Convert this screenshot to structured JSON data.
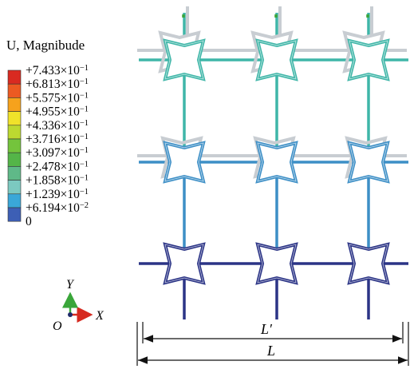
{
  "legend": {
    "title": "U, Magnibude",
    "entries": [
      {
        "label": "+7.433×10",
        "exp": "−1",
        "color": "#d92a21"
      },
      {
        "label": "+6.813×10",
        "exp": "−1",
        "color": "#ec5a22"
      },
      {
        "label": "+5.575×10",
        "exp": "−1",
        "color": "#f6a21c"
      },
      {
        "label": "+4.955×10",
        "exp": "−1",
        "color": "#f0e22a"
      },
      {
        "label": "+4.336×10",
        "exp": "−1",
        "color": "#bcd930"
      },
      {
        "label": "+3.716×10",
        "exp": "−1",
        "color": "#74c43c"
      },
      {
        "label": "+3.097×10",
        "exp": "−1",
        "color": "#54b548"
      },
      {
        "label": "+2.478×10",
        "exp": "−1",
        "color": "#5fb988"
      },
      {
        "label": "+1.858×10",
        "exp": "−1",
        "color": "#7cc9c0"
      },
      {
        "label": "+1.239×10",
        "exp": "−1",
        "color": "#3aa7d8"
      },
      {
        "label": "+6.194×10",
        "exp": "−2",
        "color": "#3d5fb5"
      },
      {
        "label": "0",
        "exp": "",
        "color": "#2b3486"
      }
    ]
  },
  "axes": {
    "x_label": "X",
    "y_label": "Y",
    "origin_label": "O"
  },
  "dimensions": {
    "inner_label": "L′",
    "outer_label": "L"
  },
  "structure": {
    "rows": 3,
    "cols": 3,
    "row_colors": [
      "#3fb6a8",
      "#3d8fc6",
      "#2b3486"
    ],
    "ghost_color": "#c8cdd2"
  }
}
